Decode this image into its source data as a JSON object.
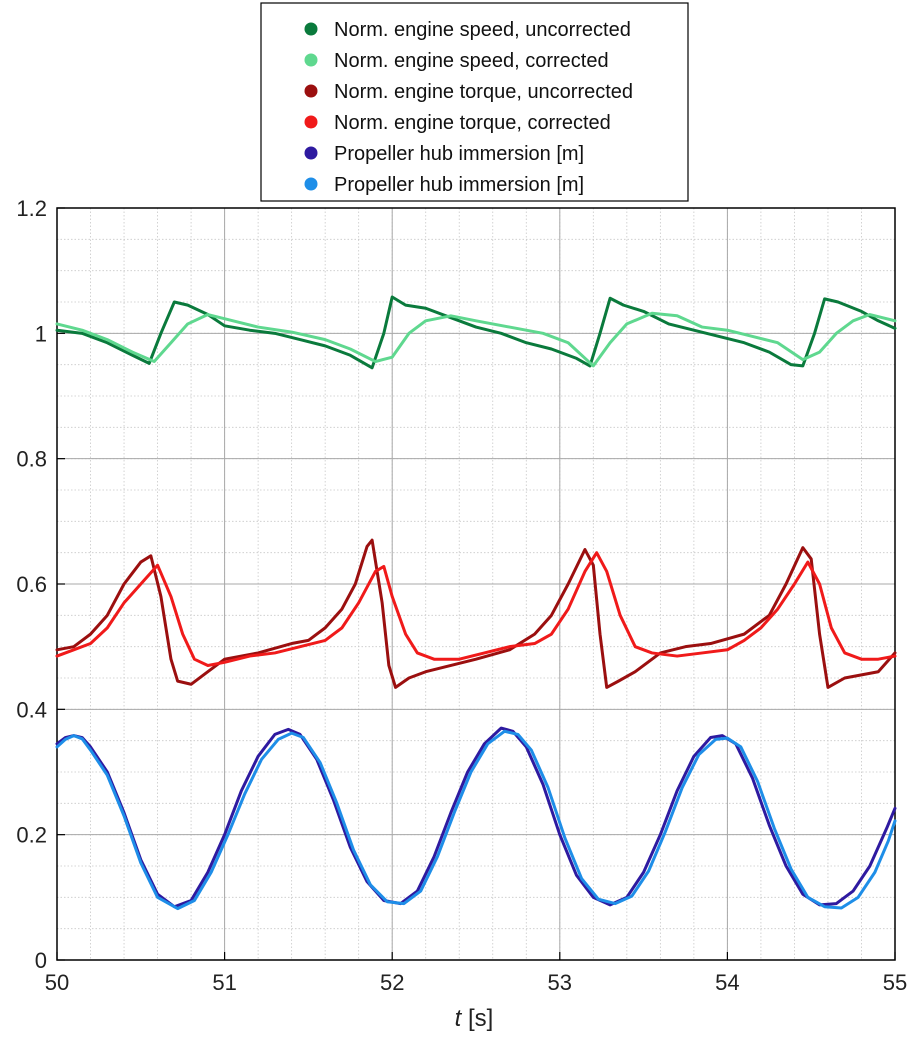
{
  "chart_data": {
    "type": "line",
    "title": "",
    "xlabel_symbol": "t",
    "xlabel_unit": " [s]",
    "ylabel": "",
    "xlim": [
      50,
      55
    ],
    "ylim": [
      0,
      1.2
    ],
    "x_ticks": [
      50,
      51,
      52,
      53,
      54,
      55
    ],
    "x_tick_labels": [
      "50",
      "51",
      "52",
      "53",
      "54",
      "55"
    ],
    "y_ticks": [
      0,
      0.2,
      0.4,
      0.6,
      0.8,
      1,
      1.2
    ],
    "y_tick_labels": [
      "0",
      "0.2",
      "0.4",
      "0.6",
      "0.8",
      "1",
      "1.2"
    ],
    "x_minor_step": 0.2,
    "y_minor_step": 0.05,
    "grid": true,
    "legend_position": "top-center",
    "series": [
      {
        "name": "Norm. engine speed, uncorrected",
        "color": "#0a7a3c",
        "points": [
          [
            50.0,
            1.005
          ],
          [
            50.15,
            1.0
          ],
          [
            50.3,
            0.985
          ],
          [
            50.45,
            0.965
          ],
          [
            50.55,
            0.952
          ],
          [
            50.62,
            1.0
          ],
          [
            50.7,
            1.05
          ],
          [
            50.78,
            1.045
          ],
          [
            50.9,
            1.03
          ],
          [
            51.0,
            1.012
          ],
          [
            51.15,
            1.005
          ],
          [
            51.3,
            1.0
          ],
          [
            51.45,
            0.99
          ],
          [
            51.6,
            0.98
          ],
          [
            51.75,
            0.965
          ],
          [
            51.88,
            0.945
          ],
          [
            51.95,
            1.0
          ],
          [
            52.0,
            1.058
          ],
          [
            52.08,
            1.045
          ],
          [
            52.2,
            1.04
          ],
          [
            52.35,
            1.025
          ],
          [
            52.5,
            1.01
          ],
          [
            52.65,
            1.0
          ],
          [
            52.8,
            0.985
          ],
          [
            52.95,
            0.975
          ],
          [
            53.1,
            0.96
          ],
          [
            53.18,
            0.948
          ],
          [
            53.24,
            1.0
          ],
          [
            53.3,
            1.056
          ],
          [
            53.38,
            1.045
          ],
          [
            53.5,
            1.035
          ],
          [
            53.65,
            1.015
          ],
          [
            53.8,
            1.005
          ],
          [
            53.95,
            0.995
          ],
          [
            54.1,
            0.985
          ],
          [
            54.25,
            0.97
          ],
          [
            54.38,
            0.95
          ],
          [
            54.45,
            0.948
          ],
          [
            54.52,
            1.0
          ],
          [
            54.58,
            1.055
          ],
          [
            54.66,
            1.05
          ],
          [
            54.8,
            1.035
          ],
          [
            54.9,
            1.02
          ],
          [
            55.0,
            1.008
          ]
        ]
      },
      {
        "name": "Norm. engine speed, corrected",
        "color": "#5fd88f",
        "points": [
          [
            50.0,
            1.015
          ],
          [
            50.15,
            1.005
          ],
          [
            50.3,
            0.99
          ],
          [
            50.45,
            0.97
          ],
          [
            50.58,
            0.955
          ],
          [
            50.68,
            0.985
          ],
          [
            50.78,
            1.015
          ],
          [
            50.9,
            1.03
          ],
          [
            51.05,
            1.02
          ],
          [
            51.2,
            1.01
          ],
          [
            51.4,
            1.002
          ],
          [
            51.6,
            0.99
          ],
          [
            51.75,
            0.975
          ],
          [
            51.9,
            0.955
          ],
          [
            52.0,
            0.962
          ],
          [
            52.1,
            1.0
          ],
          [
            52.2,
            1.02
          ],
          [
            52.35,
            1.028
          ],
          [
            52.5,
            1.02
          ],
          [
            52.7,
            1.01
          ],
          [
            52.9,
            1.0
          ],
          [
            53.05,
            0.985
          ],
          [
            53.2,
            0.948
          ],
          [
            53.3,
            0.985
          ],
          [
            53.4,
            1.015
          ],
          [
            53.55,
            1.032
          ],
          [
            53.7,
            1.028
          ],
          [
            53.85,
            1.01
          ],
          [
            54.0,
            1.005
          ],
          [
            54.15,
            0.995
          ],
          [
            54.3,
            0.985
          ],
          [
            54.45,
            0.958
          ],
          [
            54.55,
            0.97
          ],
          [
            54.65,
            1.0
          ],
          [
            54.75,
            1.02
          ],
          [
            54.85,
            1.03
          ],
          [
            55.0,
            1.02
          ]
        ]
      },
      {
        "name": "Norm. engine torque, uncorrected",
        "color": "#9b0f0f",
        "points": [
          [
            50.0,
            0.495
          ],
          [
            50.1,
            0.5
          ],
          [
            50.2,
            0.52
          ],
          [
            50.3,
            0.55
          ],
          [
            50.4,
            0.6
          ],
          [
            50.5,
            0.635
          ],
          [
            50.56,
            0.645
          ],
          [
            50.62,
            0.58
          ],
          [
            50.68,
            0.48
          ],
          [
            50.72,
            0.445
          ],
          [
            50.8,
            0.44
          ],
          [
            50.9,
            0.46
          ],
          [
            51.0,
            0.48
          ],
          [
            51.2,
            0.49
          ],
          [
            51.4,
            0.505
          ],
          [
            51.5,
            0.51
          ],
          [
            51.6,
            0.53
          ],
          [
            51.7,
            0.56
          ],
          [
            51.78,
            0.6
          ],
          [
            51.85,
            0.66
          ],
          [
            51.88,
            0.67
          ],
          [
            51.94,
            0.57
          ],
          [
            51.98,
            0.47
          ],
          [
            52.02,
            0.435
          ],
          [
            52.1,
            0.45
          ],
          [
            52.2,
            0.46
          ],
          [
            52.35,
            0.47
          ],
          [
            52.5,
            0.48
          ],
          [
            52.7,
            0.495
          ],
          [
            52.85,
            0.52
          ],
          [
            52.95,
            0.55
          ],
          [
            53.05,
            0.6
          ],
          [
            53.15,
            0.655
          ],
          [
            53.2,
            0.63
          ],
          [
            53.24,
            0.52
          ],
          [
            53.28,
            0.435
          ],
          [
            53.35,
            0.445
          ],
          [
            53.45,
            0.46
          ],
          [
            53.6,
            0.49
          ],
          [
            53.75,
            0.5
          ],
          [
            53.9,
            0.505
          ],
          [
            54.1,
            0.52
          ],
          [
            54.25,
            0.55
          ],
          [
            54.35,
            0.6
          ],
          [
            54.45,
            0.658
          ],
          [
            54.5,
            0.64
          ],
          [
            54.55,
            0.52
          ],
          [
            54.6,
            0.435
          ],
          [
            54.7,
            0.45
          ],
          [
            54.8,
            0.455
          ],
          [
            54.9,
            0.46
          ],
          [
            55.0,
            0.49
          ]
        ]
      },
      {
        "name": "Norm. engine torque, corrected",
        "color": "#f01a1a",
        "points": [
          [
            50.0,
            0.485
          ],
          [
            50.1,
            0.495
          ],
          [
            50.2,
            0.505
          ],
          [
            50.3,
            0.53
          ],
          [
            50.4,
            0.57
          ],
          [
            50.5,
            0.6
          ],
          [
            50.6,
            0.63
          ],
          [
            50.68,
            0.58
          ],
          [
            50.75,
            0.52
          ],
          [
            50.82,
            0.48
          ],
          [
            50.9,
            0.47
          ],
          [
            51.0,
            0.475
          ],
          [
            51.15,
            0.485
          ],
          [
            51.3,
            0.49
          ],
          [
            51.45,
            0.5
          ],
          [
            51.6,
            0.51
          ],
          [
            51.7,
            0.53
          ],
          [
            51.8,
            0.57
          ],
          [
            51.9,
            0.62
          ],
          [
            51.95,
            0.628
          ],
          [
            52.0,
            0.58
          ],
          [
            52.08,
            0.52
          ],
          [
            52.15,
            0.49
          ],
          [
            52.25,
            0.48
          ],
          [
            52.4,
            0.48
          ],
          [
            52.55,
            0.49
          ],
          [
            52.7,
            0.5
          ],
          [
            52.85,
            0.505
          ],
          [
            52.95,
            0.52
          ],
          [
            53.05,
            0.56
          ],
          [
            53.15,
            0.62
          ],
          [
            53.22,
            0.65
          ],
          [
            53.28,
            0.62
          ],
          [
            53.36,
            0.55
          ],
          [
            53.45,
            0.5
          ],
          [
            53.55,
            0.49
          ],
          [
            53.7,
            0.485
          ],
          [
            53.85,
            0.49
          ],
          [
            54.0,
            0.495
          ],
          [
            54.1,
            0.51
          ],
          [
            54.2,
            0.53
          ],
          [
            54.3,
            0.56
          ],
          [
            54.4,
            0.6
          ],
          [
            54.48,
            0.635
          ],
          [
            54.55,
            0.6
          ],
          [
            54.62,
            0.53
          ],
          [
            54.7,
            0.49
          ],
          [
            54.8,
            0.48
          ],
          [
            54.9,
            0.48
          ],
          [
            55.0,
            0.485
          ]
        ]
      },
      {
        "name": "Propeller hub immersion [m]",
        "color": "#2e1aa0",
        "points": [
          [
            50.0,
            0.345
          ],
          [
            50.05,
            0.355
          ],
          [
            50.1,
            0.358
          ],
          [
            50.15,
            0.355
          ],
          [
            50.2,
            0.34
          ],
          [
            50.3,
            0.3
          ],
          [
            50.4,
            0.235
          ],
          [
            50.5,
            0.16
          ],
          [
            50.6,
            0.105
          ],
          [
            50.7,
            0.085
          ],
          [
            50.8,
            0.095
          ],
          [
            50.9,
            0.14
          ],
          [
            51.0,
            0.2
          ],
          [
            51.1,
            0.27
          ],
          [
            51.2,
            0.325
          ],
          [
            51.3,
            0.36
          ],
          [
            51.38,
            0.368
          ],
          [
            51.45,
            0.36
          ],
          [
            51.55,
            0.32
          ],
          [
            51.65,
            0.255
          ],
          [
            51.75,
            0.18
          ],
          [
            51.85,
            0.125
          ],
          [
            51.95,
            0.095
          ],
          [
            52.05,
            0.09
          ],
          [
            52.15,
            0.11
          ],
          [
            52.25,
            0.165
          ],
          [
            52.35,
            0.235
          ],
          [
            52.45,
            0.3
          ],
          [
            52.55,
            0.345
          ],
          [
            52.65,
            0.37
          ],
          [
            52.72,
            0.365
          ],
          [
            52.8,
            0.34
          ],
          [
            52.9,
            0.28
          ],
          [
            53.0,
            0.2
          ],
          [
            53.1,
            0.135
          ],
          [
            53.2,
            0.1
          ],
          [
            53.3,
            0.088
          ],
          [
            53.4,
            0.1
          ],
          [
            53.5,
            0.14
          ],
          [
            53.6,
            0.2
          ],
          [
            53.7,
            0.27
          ],
          [
            53.8,
            0.325
          ],
          [
            53.9,
            0.355
          ],
          [
            53.97,
            0.358
          ],
          [
            54.05,
            0.345
          ],
          [
            54.15,
            0.29
          ],
          [
            54.25,
            0.215
          ],
          [
            54.35,
            0.15
          ],
          [
            54.45,
            0.105
          ],
          [
            54.55,
            0.088
          ],
          [
            54.65,
            0.09
          ],
          [
            54.75,
            0.11
          ],
          [
            54.85,
            0.15
          ],
          [
            54.95,
            0.21
          ],
          [
            55.0,
            0.242
          ]
        ]
      },
      {
        "name": "Propeller hub immersion [m]",
        "color": "#1e8ee8",
        "points": [
          [
            50.0,
            0.34
          ],
          [
            50.05,
            0.352
          ],
          [
            50.1,
            0.358
          ],
          [
            50.15,
            0.353
          ],
          [
            50.2,
            0.335
          ],
          [
            50.3,
            0.295
          ],
          [
            50.4,
            0.23
          ],
          [
            50.5,
            0.155
          ],
          [
            50.6,
            0.1
          ],
          [
            50.72,
            0.082
          ],
          [
            50.82,
            0.095
          ],
          [
            50.92,
            0.14
          ],
          [
            51.02,
            0.2
          ],
          [
            51.12,
            0.265
          ],
          [
            51.22,
            0.32
          ],
          [
            51.32,
            0.352
          ],
          [
            51.4,
            0.362
          ],
          [
            51.47,
            0.355
          ],
          [
            51.57,
            0.315
          ],
          [
            51.67,
            0.25
          ],
          [
            51.77,
            0.175
          ],
          [
            51.87,
            0.12
          ],
          [
            51.97,
            0.093
          ],
          [
            52.07,
            0.09
          ],
          [
            52.17,
            0.11
          ],
          [
            52.27,
            0.165
          ],
          [
            52.37,
            0.235
          ],
          [
            52.47,
            0.3
          ],
          [
            52.57,
            0.345
          ],
          [
            52.67,
            0.365
          ],
          [
            52.75,
            0.36
          ],
          [
            52.83,
            0.335
          ],
          [
            52.93,
            0.275
          ],
          [
            53.03,
            0.195
          ],
          [
            53.13,
            0.13
          ],
          [
            53.23,
            0.097
          ],
          [
            53.33,
            0.09
          ],
          [
            53.43,
            0.102
          ],
          [
            53.53,
            0.142
          ],
          [
            53.63,
            0.205
          ],
          [
            53.73,
            0.275
          ],
          [
            53.83,
            0.328
          ],
          [
            53.93,
            0.352
          ],
          [
            54.0,
            0.354
          ],
          [
            54.08,
            0.34
          ],
          [
            54.18,
            0.285
          ],
          [
            54.28,
            0.21
          ],
          [
            54.38,
            0.145
          ],
          [
            54.48,
            0.1
          ],
          [
            54.58,
            0.085
          ],
          [
            54.68,
            0.083
          ],
          [
            54.78,
            0.1
          ],
          [
            54.88,
            0.14
          ],
          [
            54.96,
            0.19
          ],
          [
            55.0,
            0.222
          ]
        ]
      }
    ]
  }
}
